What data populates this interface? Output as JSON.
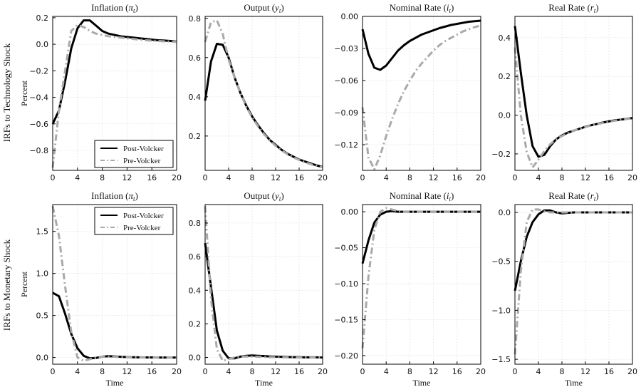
{
  "row_labels": [
    "IRFs to Technology Shock",
    "IRFs to Monetary Shock"
  ],
  "ylabel": "Percent",
  "xlabel": "Time",
  "series_styles": [
    {
      "name": "Post-Volcker",
      "color": "#000000",
      "dash": "solid"
    },
    {
      "name": "Pre-Volcker",
      "color": "#a9a9a9",
      "dash": "dashdot"
    }
  ],
  "chart_data": [
    {
      "type": "line",
      "row": 0,
      "col": 0,
      "title": "Inflation",
      "title_symbol": "π",
      "title_sub": "t",
      "xlim": [
        0,
        20
      ],
      "ylim": [
        -0.95,
        0.21
      ],
      "xticks": [
        0,
        4,
        8,
        12,
        16,
        20
      ],
      "yticks": [
        -0.8,
        -0.6,
        -0.4,
        -0.2,
        0.0,
        0.2
      ],
      "ytick_labels": [
        "−0.8",
        "−0.6",
        "−0.4",
        "−0.2",
        "0.0",
        "0.2"
      ],
      "legend": "bottom-right",
      "series": [
        {
          "name": "Post-Volcker",
          "x": [
            0,
            1,
            2,
            3,
            4,
            5,
            6,
            7,
            8,
            9,
            10,
            11,
            12,
            13,
            14,
            15,
            16,
            17,
            18,
            19,
            20
          ],
          "values": [
            -0.6,
            -0.5,
            -0.28,
            -0.03,
            0.12,
            0.18,
            0.18,
            0.14,
            0.1,
            0.08,
            0.07,
            0.06,
            0.055,
            0.05,
            0.045,
            0.04,
            0.035,
            0.03,
            0.028,
            0.025,
            0.02
          ]
        },
        {
          "name": "Pre-Volcker",
          "x": [
            0,
            1,
            2,
            3,
            4,
            5,
            6,
            7,
            8,
            9,
            10,
            11,
            12,
            13,
            14,
            15,
            16,
            17,
            18,
            19,
            20
          ],
          "values": [
            -0.93,
            -0.5,
            -0.2,
            0.1,
            0.145,
            0.13,
            0.1,
            0.08,
            0.07,
            0.06,
            0.055,
            0.05,
            0.045,
            0.04,
            0.035,
            0.03,
            0.027,
            0.025,
            0.022,
            0.02,
            0.018
          ]
        }
      ]
    },
    {
      "type": "line",
      "row": 0,
      "col": 1,
      "title": "Output",
      "title_symbol": "y",
      "title_sub": "t",
      "xlim": [
        0,
        20
      ],
      "ylim": [
        0.025,
        0.81
      ],
      "xticks": [
        0,
        4,
        8,
        12,
        16,
        20
      ],
      "yticks": [
        0.2,
        0.4,
        0.6,
        0.8
      ],
      "ytick_labels": [
        "0.2",
        "0.4",
        "0.6",
        "0.8"
      ],
      "legend": "none",
      "series": [
        {
          "name": "Post-Volcker",
          "x": [
            0,
            1,
            2,
            3,
            4,
            5,
            6,
            7,
            8,
            9,
            10,
            11,
            12,
            13,
            14,
            15,
            16,
            17,
            18,
            19,
            20
          ],
          "values": [
            0.38,
            0.58,
            0.67,
            0.665,
            0.6,
            0.5,
            0.42,
            0.355,
            0.3,
            0.255,
            0.215,
            0.18,
            0.155,
            0.13,
            0.11,
            0.095,
            0.08,
            0.07,
            0.06,
            0.05,
            0.042
          ]
        },
        {
          "name": "Pre-Volcker",
          "x": [
            0,
            1,
            2,
            3,
            4,
            5,
            6,
            7,
            8,
            9,
            10,
            11,
            12,
            13,
            14,
            15,
            16,
            17,
            18,
            19,
            20
          ],
          "values": [
            0.68,
            0.78,
            0.79,
            0.72,
            0.59,
            0.5,
            0.42,
            0.35,
            0.295,
            0.25,
            0.21,
            0.178,
            0.15,
            0.127,
            0.108,
            0.092,
            0.078,
            0.066,
            0.056,
            0.048,
            0.04
          ]
        }
      ]
    },
    {
      "type": "line",
      "row": 0,
      "col": 2,
      "title": "Nominal Rate",
      "title_symbol": "i",
      "title_sub": "t",
      "xlim": [
        0,
        20
      ],
      "ylim": [
        -0.144,
        0.0
      ],
      "xticks": [
        0,
        4,
        8,
        12,
        16,
        20
      ],
      "yticks": [
        -0.12,
        -0.09,
        -0.06,
        -0.03,
        0.0
      ],
      "ytick_labels": [
        "−0.12",
        "−0.09",
        "−0.06",
        "−0.03",
        "0.00"
      ],
      "legend": "none",
      "series": [
        {
          "name": "Post-Volcker",
          "x": [
            0,
            1,
            2,
            3,
            4,
            5,
            6,
            7,
            8,
            9,
            10,
            11,
            12,
            13,
            14,
            15,
            16,
            17,
            18,
            19,
            20
          ],
          "values": [
            -0.012,
            -0.035,
            -0.048,
            -0.05,
            -0.046,
            -0.039,
            -0.032,
            -0.027,
            -0.023,
            -0.02,
            -0.017,
            -0.015,
            -0.013,
            -0.011,
            -0.0095,
            -0.008,
            -0.007,
            -0.006,
            -0.005,
            -0.0045,
            -0.004
          ]
        },
        {
          "name": "Pre-Volcker",
          "x": [
            0,
            1,
            2,
            3,
            4,
            5,
            6,
            7,
            8,
            9,
            10,
            11,
            12,
            13,
            14,
            15,
            16,
            17,
            18,
            19,
            20
          ],
          "values": [
            -0.085,
            -0.132,
            -0.143,
            -0.13,
            -0.112,
            -0.096,
            -0.082,
            -0.07,
            -0.06,
            -0.051,
            -0.044,
            -0.038,
            -0.032,
            -0.027,
            -0.023,
            -0.02,
            -0.017,
            -0.014,
            -0.012,
            -0.01,
            -0.0085
          ]
        }
      ]
    },
    {
      "type": "line",
      "row": 0,
      "col": 3,
      "title": "Real Rate",
      "title_symbol": "r",
      "title_sub": "t",
      "xlim": [
        0,
        20
      ],
      "ylim": [
        -0.285,
        0.51
      ],
      "xticks": [
        0,
        4,
        8,
        12,
        16,
        20
      ],
      "yticks": [
        -0.2,
        0.0,
        0.2,
        0.4
      ],
      "ytick_labels": [
        "−0.2",
        "0.0",
        "0.2",
        "0.4"
      ],
      "legend": "none",
      "series": [
        {
          "name": "Post-Volcker",
          "x": [
            0,
            1,
            2,
            3,
            4,
            5,
            6,
            7,
            8,
            9,
            10,
            11,
            12,
            13,
            14,
            15,
            16,
            17,
            18,
            19,
            20
          ],
          "values": [
            0.46,
            0.22,
            0.0,
            -0.16,
            -0.215,
            -0.205,
            -0.16,
            -0.125,
            -0.105,
            -0.09,
            -0.08,
            -0.07,
            -0.06,
            -0.052,
            -0.045,
            -0.038,
            -0.032,
            -0.027,
            -0.023,
            -0.019,
            -0.015
          ]
        },
        {
          "name": "Pre-Volcker",
          "x": [
            0,
            1,
            2,
            3,
            4,
            5,
            6,
            7,
            8,
            9,
            10,
            11,
            12,
            13,
            14,
            15,
            16,
            17,
            18,
            19,
            20
          ],
          "values": [
            0.35,
            0.0,
            -0.19,
            -0.27,
            -0.23,
            -0.185,
            -0.15,
            -0.125,
            -0.108,
            -0.093,
            -0.08,
            -0.07,
            -0.061,
            -0.053,
            -0.046,
            -0.04,
            -0.034,
            -0.029,
            -0.024,
            -0.02,
            -0.017
          ]
        }
      ]
    },
    {
      "type": "line",
      "row": 1,
      "col": 0,
      "title": "Inflation",
      "title_symbol": "π",
      "title_sub": "t",
      "xlim": [
        0,
        20
      ],
      "ylim": [
        -0.08,
        1.82
      ],
      "xticks": [
        0,
        4,
        8,
        12,
        16,
        20
      ],
      "yticks": [
        0.0,
        0.5,
        1.0,
        1.5
      ],
      "ytick_labels": [
        "0.0",
        "0.5",
        "1.0",
        "1.5"
      ],
      "legend": "top-right",
      "series": [
        {
          "name": "Post-Volcker",
          "x": [
            0,
            1,
            2,
            3,
            4,
            5,
            6,
            7,
            8,
            9,
            10,
            11,
            12,
            13,
            14,
            15,
            16,
            17,
            18,
            19,
            20
          ],
          "values": [
            0.77,
            0.73,
            0.52,
            0.28,
            0.11,
            0.02,
            -0.01,
            -0.005,
            0.01,
            0.015,
            0.012,
            0.008,
            0.005,
            0.003,
            0.002,
            0.001,
            0.001,
            0.0,
            0.0,
            0.0,
            0.0
          ]
        },
        {
          "name": "Pre-Volcker",
          "x": [
            0,
            1,
            2,
            3,
            4,
            5,
            6,
            7,
            8,
            9,
            10,
            11,
            12,
            13,
            14,
            15,
            16,
            17,
            18,
            19,
            20
          ],
          "values": [
            1.8,
            1.45,
            0.85,
            0.3,
            0.0,
            -0.04,
            -0.02,
            0.0,
            0.01,
            0.01,
            0.008,
            0.005,
            0.003,
            0.002,
            0.001,
            0.0,
            0.0,
            0.0,
            0.0,
            0.0,
            0.0
          ]
        }
      ]
    },
    {
      "type": "line",
      "row": 1,
      "col": 1,
      "title": "Output",
      "title_symbol": "y",
      "title_sub": "t",
      "xlim": [
        0,
        20
      ],
      "ylim": [
        -0.04,
        0.91
      ],
      "xticks": [
        0,
        4,
        8,
        12,
        16,
        20
      ],
      "yticks": [
        0.0,
        0.2,
        0.4,
        0.6,
        0.8
      ],
      "ytick_labels": [
        "0.0",
        "0.2",
        "0.4",
        "0.6",
        "0.8"
      ],
      "legend": "none",
      "series": [
        {
          "name": "Post-Volcker",
          "x": [
            0,
            1,
            2,
            3,
            4,
            5,
            6,
            7,
            8,
            9,
            10,
            11,
            12,
            13,
            14,
            15,
            16,
            17,
            18,
            19,
            20
          ],
          "values": [
            0.68,
            0.42,
            0.16,
            0.04,
            -0.005,
            -0.005,
            0.005,
            0.01,
            0.012,
            0.01,
            0.008,
            0.006,
            0.005,
            0.004,
            0.003,
            0.002,
            0.002,
            0.001,
            0.001,
            0.001,
            0.0
          ]
        },
        {
          "name": "Pre-Volcker",
          "x": [
            0,
            1,
            2,
            3,
            4,
            5,
            6,
            7,
            8,
            9,
            10,
            11,
            12,
            13,
            14,
            15,
            16,
            17,
            18,
            19,
            20
          ],
          "values": [
            0.9,
            0.35,
            0.05,
            -0.02,
            -0.01,
            0.0,
            0.005,
            0.006,
            0.005,
            0.004,
            0.003,
            0.002,
            0.002,
            0.001,
            0.001,
            0.0,
            0.0,
            0.0,
            0.0,
            0.0,
            0.0
          ]
        }
      ]
    },
    {
      "type": "line",
      "row": 1,
      "col": 2,
      "title": "Nominal Rate",
      "title_symbol": "i",
      "title_sub": "t",
      "xlim": [
        0,
        20
      ],
      "ylim": [
        -0.212,
        0.01
      ],
      "xticks": [
        0,
        4,
        8,
        12,
        16,
        20
      ],
      "yticks": [
        -0.2,
        -0.15,
        -0.1,
        -0.05,
        0.0
      ],
      "ytick_labels": [
        "−0.20",
        "−0.15",
        "−0.10",
        "−0.05",
        "0.00"
      ],
      "legend": "none",
      "series": [
        {
          "name": "Post-Volcker",
          "x": [
            0,
            1,
            2,
            3,
            4,
            5,
            6,
            7,
            8,
            9,
            10,
            11,
            12,
            13,
            14,
            15,
            16,
            17,
            18,
            19,
            20
          ],
          "values": [
            -0.072,
            -0.04,
            -0.015,
            -0.004,
            0.0,
            0.001,
            0.0,
            0.0,
            0.0,
            0.0,
            0.0,
            0.0,
            0.0,
            0.0,
            0.0,
            0.0,
            0.0,
            0.0,
            0.0,
            0.0,
            0.0
          ]
        },
        {
          "name": "Pre-Volcker",
          "x": [
            0,
            1,
            2,
            3,
            4,
            5,
            6,
            7,
            8,
            9,
            10,
            11,
            12,
            13,
            14,
            15,
            16,
            17,
            18,
            19,
            20
          ],
          "values": [
            -0.19,
            -0.09,
            -0.025,
            0.0,
            0.005,
            0.003,
            0.001,
            0.0,
            0.0,
            0.0,
            0.0,
            0.0,
            0.0,
            0.0,
            0.0,
            0.0,
            0.0,
            0.0,
            0.0,
            0.0,
            0.0
          ]
        }
      ]
    },
    {
      "type": "line",
      "row": 1,
      "col": 3,
      "title": "Real Rate",
      "title_symbol": "r",
      "title_sub": "t",
      "xlim": [
        0,
        20
      ],
      "ylim": [
        -1.55,
        0.08
      ],
      "xticks": [
        0,
        4,
        8,
        12,
        16,
        20
      ],
      "yticks": [
        -1.5,
        -1.0,
        -0.5,
        0.0
      ],
      "ytick_labels": [
        "−1.5",
        "−1.0",
        "−0.5",
        "0.0"
      ],
      "legend": "none",
      "series": [
        {
          "name": "Post-Volcker",
          "x": [
            0,
            1,
            2,
            3,
            4,
            5,
            6,
            7,
            8,
            9,
            10,
            11,
            12,
            13,
            14,
            15,
            16,
            17,
            18,
            19,
            20
          ],
          "values": [
            -0.8,
            -0.5,
            -0.25,
            -0.1,
            -0.02,
            0.02,
            0.02,
            0.0,
            -0.01,
            -0.005,
            0.0,
            0.0,
            0.0,
            0.0,
            0.0,
            0.0,
            0.0,
            0.0,
            0.0,
            0.0,
            0.0
          ]
        },
        {
          "name": "Pre-Volcker",
          "x": [
            0,
            1,
            2,
            3,
            4,
            5,
            6,
            7,
            8,
            9,
            10,
            11,
            12,
            13,
            14,
            15,
            16,
            17,
            18,
            19,
            20
          ],
          "values": [
            -1.45,
            -0.6,
            -0.1,
            0.03,
            0.03,
            0.01,
            0.0,
            0.0,
            0.0,
            0.0,
            0.0,
            0.0,
            0.0,
            0.0,
            0.0,
            0.0,
            0.0,
            0.0,
            0.0,
            0.0,
            0.0
          ]
        }
      ]
    }
  ]
}
